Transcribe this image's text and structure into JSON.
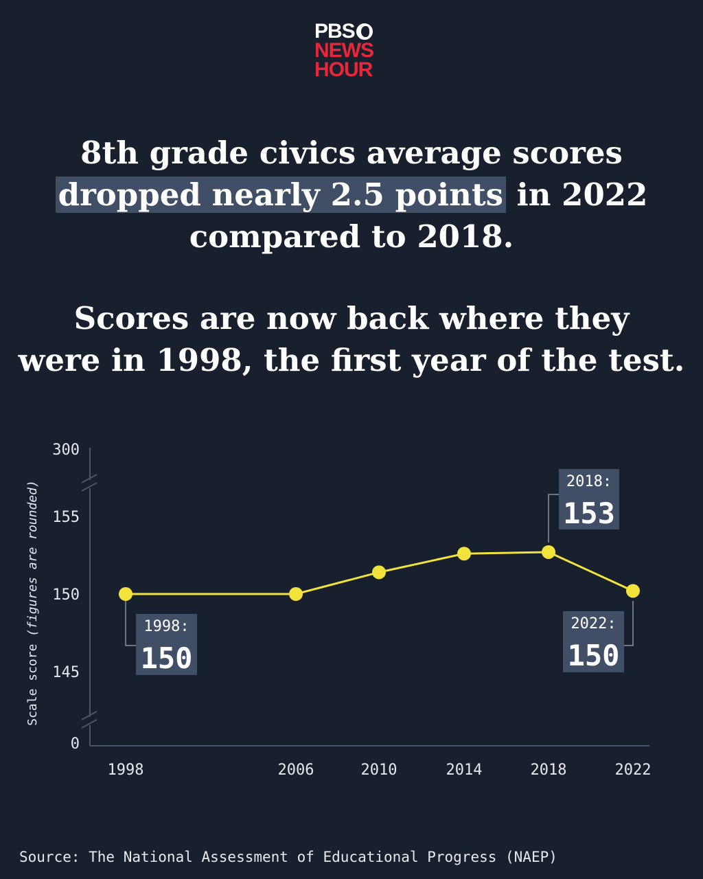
{
  "logo": {
    "line1": "PBS",
    "line2": "NEWS",
    "line3": "HOUR"
  },
  "headline": {
    "line1": "8th grade civics average scores",
    "highlight": "dropped nearly 2.5 points",
    "line2_rest": " in 2022",
    "line3": "compared to 2018."
  },
  "subhead": {
    "line1": "Scores are now back where they",
    "line2": "were in 1998, the first year of the test."
  },
  "source": "Source: The National Assessment of Educational Progress (NAEP)",
  "colors": {
    "background": "#18202e",
    "line": "#f2e33c",
    "callout": "#404f66",
    "brand_red": "#e8273a"
  },
  "chart_data": {
    "type": "line",
    "ylabel": "Scale score (figures are rounded)",
    "x": [
      "1998",
      "2006",
      "2010",
      "2014",
      "2018",
      "2022"
    ],
    "series": [
      {
        "values": [
          150,
          150,
          151.4,
          152.6,
          152.7,
          150.2
        ]
      }
    ],
    "y_ticks": [
      "300",
      "155",
      "150",
      "145",
      "0"
    ],
    "axis_breaks": "between 155 and 300, and between 0 and 145",
    "annotations": [
      {
        "x": "1998",
        "label": "1998:",
        "value": "150"
      },
      {
        "x": "2018",
        "label": "2018:",
        "value": "153"
      },
      {
        "x": "2022",
        "label": "2022:",
        "value": "150"
      }
    ]
  }
}
